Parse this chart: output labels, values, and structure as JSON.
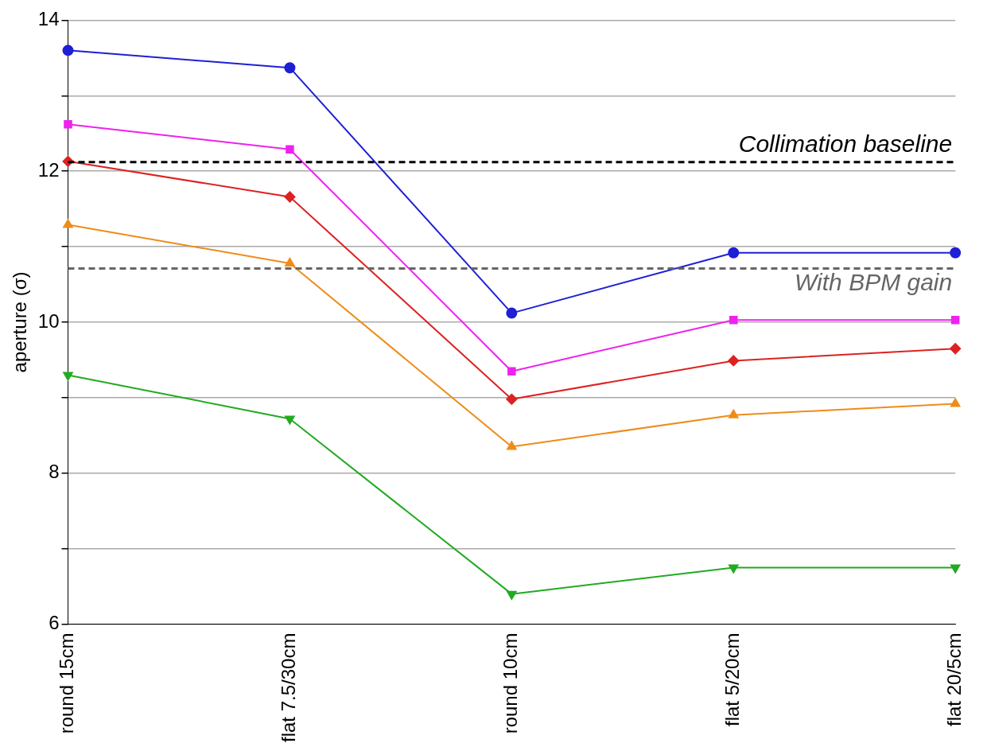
{
  "chart_data": {
    "type": "line",
    "ylabel": "aperture (σ)",
    "categories": [
      "round 15cm",
      "flat 7.5/30cm",
      "round 10cm",
      "flat 5/20cm",
      "flat 20/5cm"
    ],
    "series": [
      {
        "color": "#1f1fd6",
        "marker": "circle",
        "values": [
          13.6,
          13.37,
          10.12,
          10.92,
          10.92
        ]
      },
      {
        "color": "#ee22ee",
        "marker": "square",
        "values": [
          12.62,
          12.29,
          9.35,
          10.03,
          10.03
        ]
      },
      {
        "color": "#dd2222",
        "marker": "diamond",
        "values": [
          12.13,
          11.66,
          8.98,
          9.49,
          9.65
        ]
      },
      {
        "color": "#ee8c1a",
        "marker": "triangle",
        "values": [
          11.29,
          10.78,
          8.35,
          8.77,
          8.92
        ]
      },
      {
        "color": "#22aa22",
        "marker": "triangle",
        "values": [
          9.3,
          8.72,
          6.4,
          6.75,
          6.75
        ]
      }
    ],
    "ylim": [
      6,
      14
    ],
    "yticks": [
      6,
      {
        "value": 7,
        "label": null
      },
      8,
      {
        "value": 9,
        "label": null
      },
      10,
      {
        "value": 11,
        "label": null
      },
      12,
      {
        "value": 13,
        "label": null
      },
      14
    ],
    "grid": "y",
    "legend": false,
    "line_style": "solid",
    "ref_lines": [
      {
        "axis": "y",
        "value": 12.12,
        "label": "Collimation baseline",
        "color": "#000000",
        "line_style": "dashed"
      },
      {
        "axis": "y",
        "value": 10.71,
        "label": "With BPM gain",
        "color": "#666666",
        "line_style": "dashed"
      }
    ]
  }
}
